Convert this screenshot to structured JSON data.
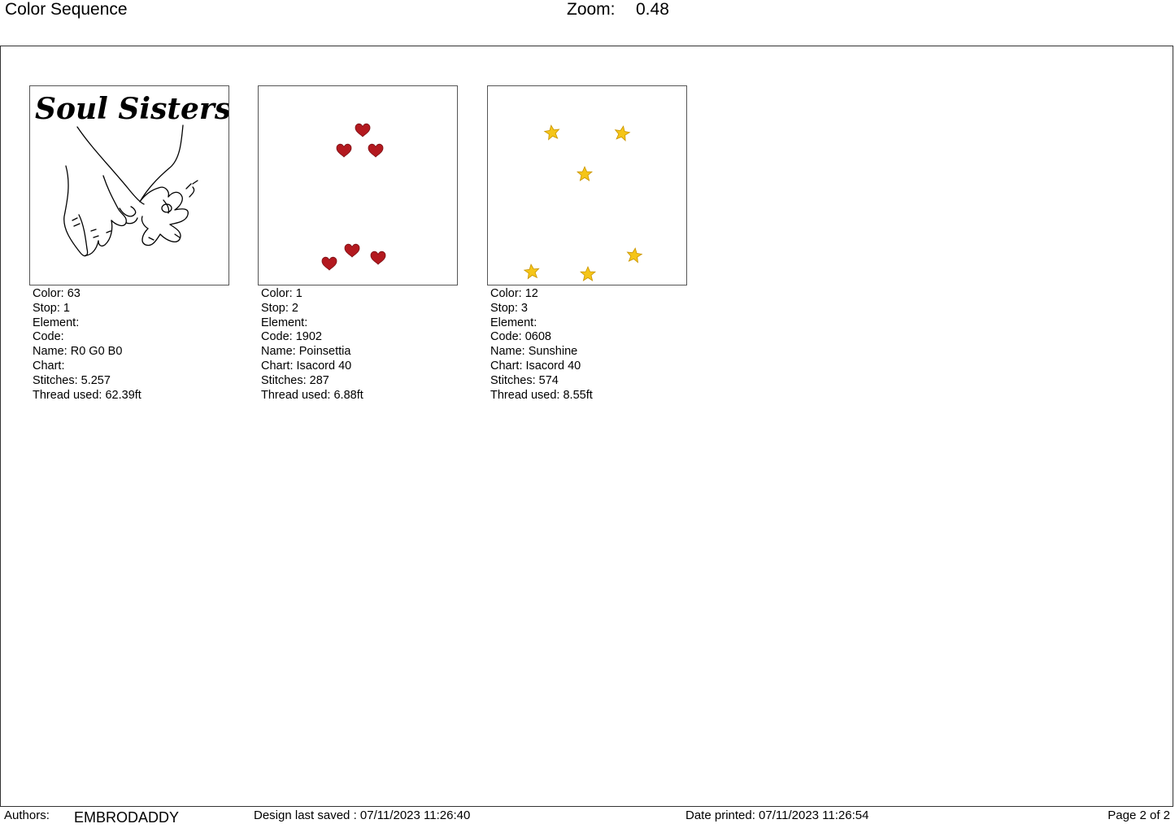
{
  "header": {
    "title": "Color Sequence",
    "zoom_label": "Zoom:",
    "zoom_value": "0.48"
  },
  "colors": {
    "heart_red": "#b3191f",
    "star_yellow": "#f5c518",
    "outline_black": "#000000"
  },
  "thumbnails": [
    {
      "design_text": "Soul Sisters",
      "icon": "pinky-promise-hands",
      "lines": [
        "Color: 63",
        "Stop: 1",
        "Element:",
        "Code:",
        "Name: R0 G0 B0",
        "Chart:",
        "Stitches: 5.257",
        "Thread used: 62.39ft"
      ]
    },
    {
      "icon": "hearts",
      "lines": [
        "Color: 1",
        "Stop: 2",
        "Element:",
        "Code: 1902",
        "Name: Poinsettia",
        "Chart: Isacord 40",
        "Stitches: 287",
        "Thread used: 6.88ft"
      ]
    },
    {
      "icon": "stars",
      "lines": [
        "Color: 12",
        "Stop: 3",
        "Element:",
        "Code: 0608",
        "Name: Sunshine",
        "Chart: Isacord 40",
        "Stitches: 574",
        "Thread used: 8.55ft"
      ]
    }
  ],
  "footer": {
    "authors_label": "Authors:",
    "authors_value": "EMBRODADDY",
    "saved": "Design last saved : 07/11/2023 11:26:40",
    "printed": "Date printed: 07/11/2023 11:26:54",
    "page": "Page 2 of 2"
  }
}
